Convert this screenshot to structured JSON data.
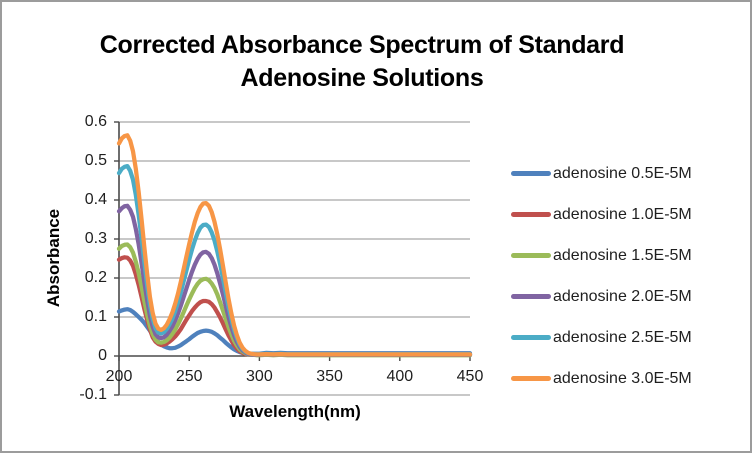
{
  "window": {
    "background": "#ffffff",
    "border_color": "#9c9c9c"
  },
  "chart_data": {
    "type": "line",
    "title": "Corrected Absorbance Spectrum of Standard Adenosine Solutions",
    "title_lines": [
      "Corrected Absorbance Spectrum of Standard",
      "Adenosine Solutions"
    ],
    "xlabel": "Wavelength(nm)",
    "ylabel": "Absorbance",
    "xlim": [
      200,
      450
    ],
    "ylim": [
      -0.1,
      0.6
    ],
    "xticks": {
      "values": [
        200,
        250,
        300,
        350,
        400,
        450
      ],
      "labels": [
        "200",
        "250",
        "300",
        "350",
        "400",
        "450"
      ]
    },
    "yticks": {
      "values": [
        0.6,
        0.5,
        0.4,
        0.3,
        0.2,
        0.1,
        0,
        -0.1
      ],
      "labels": [
        "0.6",
        "0.5",
        "0.4",
        "0.3",
        "0.2",
        "0.1",
        "0",
        "-0.1"
      ]
    },
    "grid": {
      "horizontal": true,
      "color": "#a8a8a8"
    },
    "axis_color": "#4a4a4a",
    "text_color": "#1f1f1f",
    "legend_position": "right",
    "line_width": 4.25,
    "x": [
      200,
      202,
      204,
      206,
      208,
      210,
      212,
      214,
      216,
      218,
      220,
      222,
      224,
      226,
      228,
      230,
      232,
      234,
      236,
      238,
      240,
      242,
      244,
      246,
      248,
      250,
      252,
      254,
      256,
      258,
      260,
      262,
      264,
      266,
      268,
      270,
      272,
      274,
      276,
      278,
      280,
      282,
      284,
      286,
      288,
      290,
      292,
      294,
      296,
      298,
      300,
      305,
      310,
      315,
      320,
      330,
      340,
      350,
      375,
      400,
      425,
      450
    ],
    "series": [
      {
        "name": "adenosine 0.5E-5M",
        "color": "#4F81BD",
        "y": [
          0.114,
          0.117,
          0.119,
          0.12,
          0.118,
          0.113,
          0.107,
          0.1,
          0.093,
          0.085,
          0.075,
          0.065,
          0.055,
          0.045,
          0.037,
          0.03,
          0.025,
          0.022,
          0.02,
          0.02,
          0.021,
          0.024,
          0.028,
          0.033,
          0.038,
          0.043,
          0.049,
          0.054,
          0.059,
          0.062,
          0.064,
          0.065,
          0.064,
          0.062,
          0.058,
          0.053,
          0.047,
          0.041,
          0.034,
          0.028,
          0.022,
          0.017,
          0.013,
          0.01,
          0.008,
          0.007,
          0.006,
          0.006,
          0.006,
          0.006,
          0.006,
          0.008,
          0.007,
          0.008,
          0.007,
          0.007,
          0.007,
          0.007,
          0.007,
          0.007,
          0.007,
          0.007
        ]
      },
      {
        "name": "adenosine 1.0E-5M",
        "color": "#C0504D",
        "y": [
          0.247,
          0.251,
          0.253,
          0.252,
          0.245,
          0.231,
          0.209,
          0.182,
          0.152,
          0.121,
          0.093,
          0.068,
          0.048,
          0.037,
          0.031,
          0.028,
          0.029,
          0.032,
          0.037,
          0.043,
          0.05,
          0.059,
          0.069,
          0.081,
          0.093,
          0.104,
          0.115,
          0.124,
          0.132,
          0.138,
          0.141,
          0.141,
          0.139,
          0.133,
          0.124,
          0.112,
          0.099,
          0.084,
          0.068,
          0.053,
          0.04,
          0.028,
          0.019,
          0.012,
          0.008,
          0.005,
          0.004,
          0.003,
          0.003,
          0.003,
          0.003,
          0.003,
          0.003,
          0.003,
          0.003,
          0.003,
          0.003,
          0.003,
          0.003,
          0.003,
          0.003,
          0.003
        ]
      },
      {
        "name": "adenosine 1.5E-5M",
        "color": "#9BBB59",
        "y": [
          0.275,
          0.282,
          0.285,
          0.286,
          0.279,
          0.265,
          0.242,
          0.212,
          0.178,
          0.141,
          0.107,
          0.077,
          0.056,
          0.042,
          0.035,
          0.034,
          0.036,
          0.04,
          0.047,
          0.057,
          0.068,
          0.081,
          0.096,
          0.112,
          0.129,
          0.145,
          0.16,
          0.174,
          0.185,
          0.193,
          0.197,
          0.198,
          0.194,
          0.186,
          0.174,
          0.158,
          0.138,
          0.117,
          0.095,
          0.074,
          0.056,
          0.039,
          0.027,
          0.017,
          0.011,
          0.007,
          0.004,
          0.003,
          0.003,
          0.002,
          0.002,
          0.003,
          0.002,
          0.003,
          0.002,
          0.002,
          0.002,
          0.002,
          0.002,
          0.002,
          0.002,
          0.002
        ]
      },
      {
        "name": "adenosine 2.0E-5M",
        "color": "#8064A2",
        "y": [
          0.371,
          0.379,
          0.384,
          0.385,
          0.375,
          0.357,
          0.326,
          0.286,
          0.239,
          0.19,
          0.144,
          0.103,
          0.075,
          0.056,
          0.048,
          0.046,
          0.048,
          0.054,
          0.064,
          0.076,
          0.091,
          0.109,
          0.129,
          0.151,
          0.173,
          0.195,
          0.216,
          0.234,
          0.249,
          0.26,
          0.266,
          0.267,
          0.262,
          0.251,
          0.234,
          0.212,
          0.186,
          0.158,
          0.129,
          0.1,
          0.075,
          0.053,
          0.036,
          0.023,
          0.014,
          0.009,
          0.005,
          0.004,
          0.003,
          0.003,
          0.003,
          0.004,
          0.003,
          0.004,
          0.003,
          0.003,
          0.003,
          0.003,
          0.003,
          0.003,
          0.003,
          0.003
        ]
      },
      {
        "name": "adenosine 2.5E-5M",
        "color": "#4BACC6",
        "y": [
          0.469,
          0.48,
          0.485,
          0.487,
          0.475,
          0.452,
          0.413,
          0.361,
          0.303,
          0.241,
          0.182,
          0.131,
          0.095,
          0.071,
          0.06,
          0.058,
          0.061,
          0.069,
          0.081,
          0.096,
          0.115,
          0.138,
          0.163,
          0.191,
          0.219,
          0.247,
          0.273,
          0.296,
          0.315,
          0.329,
          0.336,
          0.337,
          0.331,
          0.317,
          0.296,
          0.268,
          0.236,
          0.2,
          0.163,
          0.126,
          0.095,
          0.067,
          0.046,
          0.029,
          0.018,
          0.011,
          0.007,
          0.006,
          0.005,
          0.005,
          0.005,
          0.006,
          0.005,
          0.006,
          0.005,
          0.005,
          0.005,
          0.005,
          0.005,
          0.005,
          0.005,
          0.005
        ]
      },
      {
        "name": "adenosine 3.0E-5M",
        "color": "#F79646",
        "y": [
          0.545,
          0.558,
          0.564,
          0.566,
          0.552,
          0.525,
          0.48,
          0.42,
          0.352,
          0.28,
          0.212,
          0.152,
          0.11,
          0.083,
          0.07,
          0.067,
          0.071,
          0.08,
          0.094,
          0.112,
          0.134,
          0.16,
          0.19,
          0.222,
          0.255,
          0.287,
          0.317,
          0.344,
          0.366,
          0.382,
          0.391,
          0.392,
          0.385,
          0.369,
          0.344,
          0.312,
          0.274,
          0.232,
          0.189,
          0.147,
          0.11,
          0.078,
          0.053,
          0.034,
          0.021,
          0.013,
          0.008,
          0.006,
          0.005,
          0.004,
          0.004,
          0.005,
          0.004,
          0.005,
          0.004,
          0.004,
          0.004,
          0.004,
          0.004,
          0.004,
          0.004,
          0.004
        ]
      }
    ]
  }
}
